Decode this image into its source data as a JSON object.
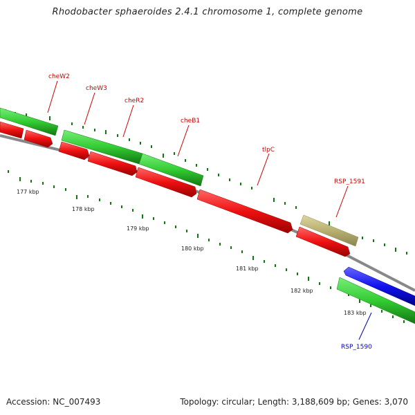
{
  "title": "Rhodobacter sphaeroides 2.4.1 chromosome 1, complete genome",
  "footer": {
    "accession": "Accession: NC_007493",
    "stats": "Topology: circular; Length: 3,188,609 bp; Genes: 3,070"
  },
  "kbp_ticks": [
    "177 kbp",
    "178 kbp",
    "179 kbp",
    "180 kbp",
    "181 kbp",
    "182 kbp",
    "183 kbp"
  ],
  "gene_labels": [
    "cheW2",
    "cheW3",
    "cheR2",
    "cheB1",
    "tlpC",
    "RSP_1591",
    "RSP_1590"
  ],
  "colors": {
    "green": "#33cc33",
    "red": "#ee1111",
    "blue": "#1111ee",
    "olive": "#b8b070",
    "backbone": "#888888",
    "tick": "#117711",
    "label_red": "#cc0000",
    "label_blue": "#0000bb"
  }
}
